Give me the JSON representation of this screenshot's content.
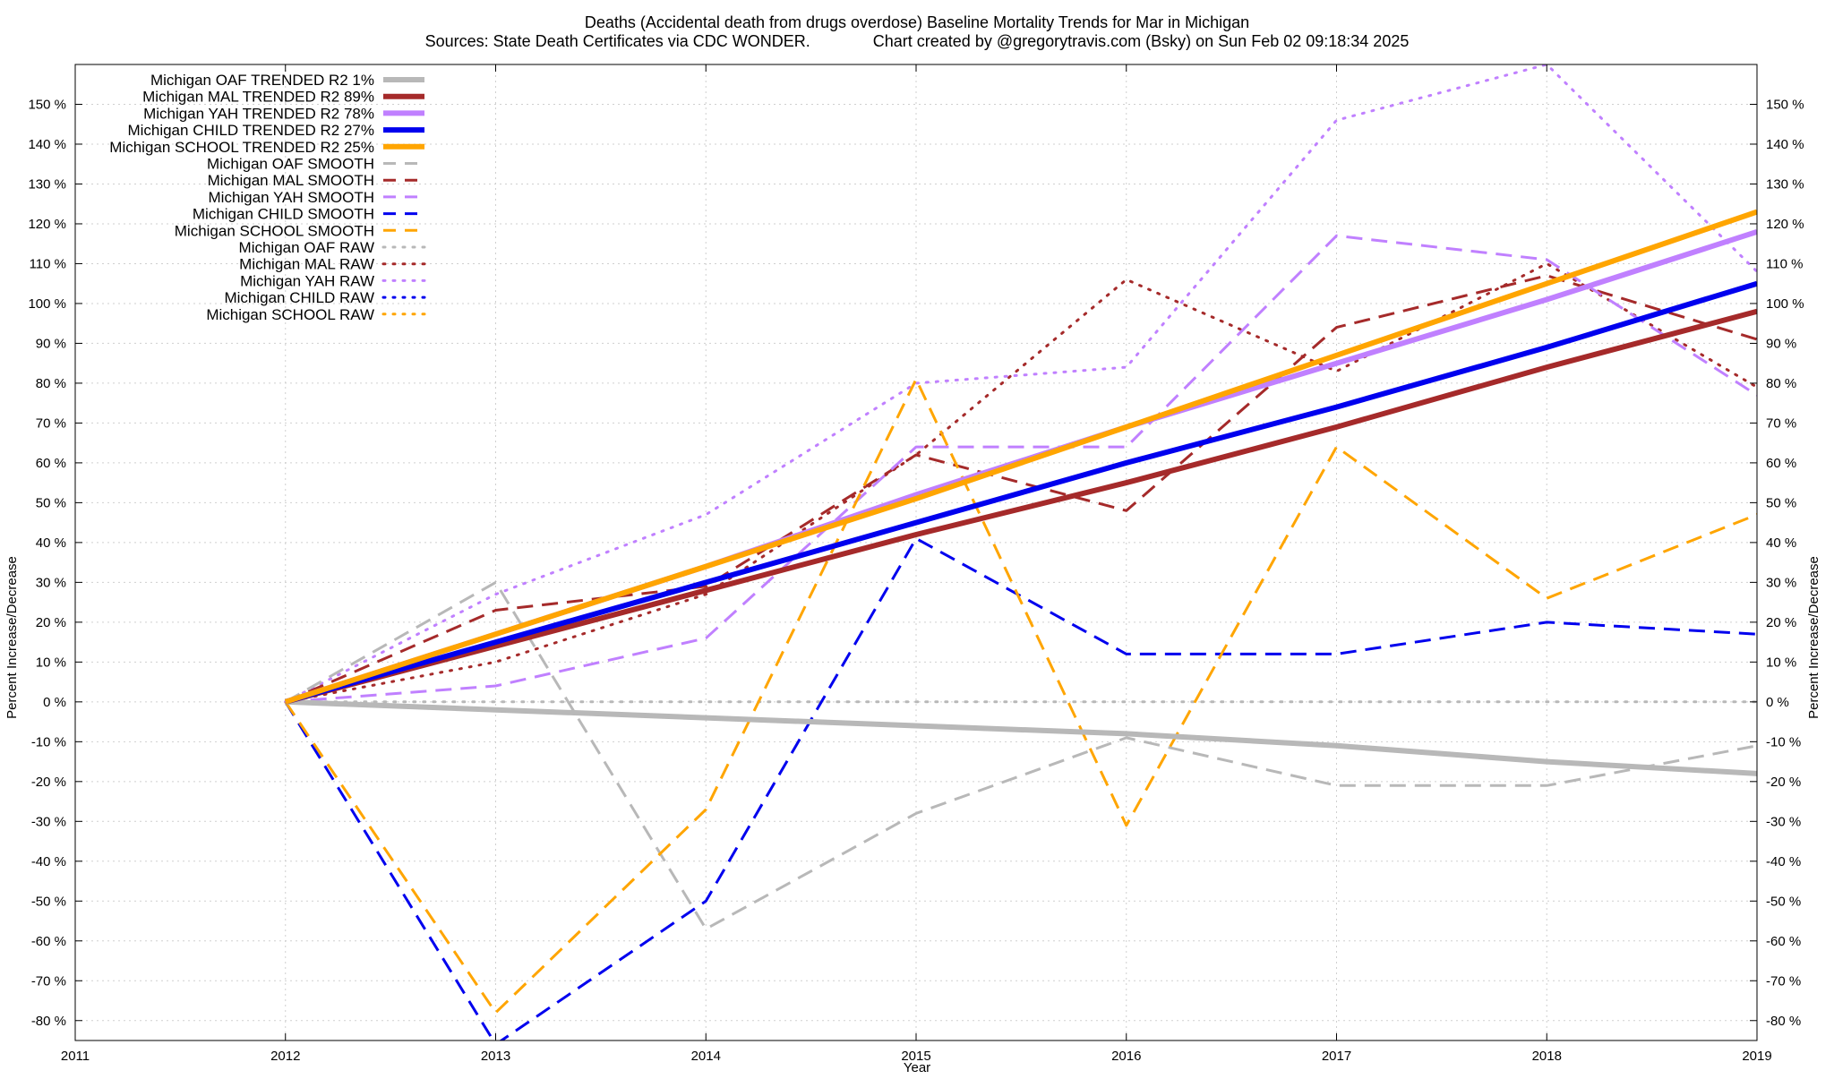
{
  "chart_data": {
    "type": "line",
    "title": "Deaths (Accidental death from drugs overdose)  Baseline Mortality Trends for Mar in Michigan",
    "subtitle": "Sources: State Death Certificates via CDC WONDER.              Chart created by @gregorytravis.com (Bsky) on Sun Feb 02 09:18:34 2025",
    "xlabel": "Year",
    "ylabel": "Percent Increase/Decrease",
    "xlim": [
      2011,
      2019
    ],
    "ylim": [
      -85,
      160
    ],
    "x_ticks": [
      "2011",
      "2012",
      "2013",
      "2014",
      "2015",
      "2016",
      "2017",
      "2018",
      "2019"
    ],
    "y_ticks": [
      "-80 %",
      "-70 %",
      "-60 %",
      "-50 %",
      "-40 %",
      "-30 %",
      "-20 %",
      "-10 %",
      "0 %",
      "10 %",
      "20 %",
      "30 %",
      "40 %",
      "50 %",
      "60 %",
      "70 %",
      "80 %",
      "90 %",
      "100 %",
      "110 %",
      "120 %",
      "130 %",
      "140 %",
      "150 %"
    ],
    "grid": true,
    "legend_position": "top-left",
    "series": [
      {
        "name": "Michigan OAF TRENDED R2   1%",
        "color": "#b8b8b8",
        "style": "solid",
        "width": 6,
        "x": [
          2012,
          2013,
          2014,
          2015,
          2016,
          2017,
          2018,
          2019
        ],
        "y": [
          0,
          -2,
          -4,
          -6,
          -8,
          -11,
          -15,
          -18
        ]
      },
      {
        "name": "Michigan MAL TRENDED R2  89%",
        "color": "#a52a2a",
        "style": "solid",
        "width": 6,
        "x": [
          2012,
          2013,
          2014,
          2015,
          2016,
          2017,
          2018,
          2019
        ],
        "y": [
          0,
          14,
          28,
          42,
          55,
          69,
          84,
          98
        ]
      },
      {
        "name": "Michigan YAH TRENDED R2  78%",
        "color": "#c080ff",
        "style": "solid",
        "width": 6,
        "x": [
          2012,
          2013,
          2014,
          2015,
          2016,
          2017,
          2018,
          2019
        ],
        "y": [
          0,
          17,
          34,
          52,
          69,
          85,
          101,
          118
        ]
      },
      {
        "name": "Michigan CHILD TRENDED R2  27%",
        "color": "#0000ee",
        "style": "solid",
        "width": 6,
        "x": [
          2012,
          2013,
          2014,
          2015,
          2016,
          2017,
          2018,
          2019
        ],
        "y": [
          0,
          15,
          30,
          45,
          60,
          74,
          89,
          105
        ]
      },
      {
        "name": "Michigan SCHOOL TRENDED R2  25%",
        "color": "#ffa500",
        "style": "solid",
        "width": 6,
        "x": [
          2012,
          2013,
          2014,
          2015,
          2016,
          2017,
          2018,
          2019
        ],
        "y": [
          0,
          17,
          34,
          51,
          69,
          87,
          105,
          123
        ]
      },
      {
        "name": "Michigan OAF SMOOTH",
        "color": "#b8b8b8",
        "style": "dashed",
        "width": 3,
        "x": [
          2012,
          2013,
          2014,
          2015,
          2016,
          2017,
          2018,
          2019
        ],
        "y": [
          0,
          30,
          -57,
          -28,
          -9,
          -21,
          -21,
          -11
        ]
      },
      {
        "name": "Michigan MAL SMOOTH",
        "color": "#a52a2a",
        "style": "dashed",
        "width": 3,
        "x": [
          2012,
          2013,
          2014,
          2015,
          2016,
          2017,
          2018,
          2019
        ],
        "y": [
          0,
          23,
          29,
          62,
          48,
          94,
          107,
          91
        ]
      },
      {
        "name": "Michigan YAH SMOOTH",
        "color": "#c080ff",
        "style": "dashed",
        "width": 3,
        "x": [
          2012,
          2013,
          2014,
          2015,
          2016,
          2017,
          2018,
          2019
        ],
        "y": [
          0,
          4,
          16,
          64,
          64,
          117,
          111,
          77
        ]
      },
      {
        "name": "Michigan CHILD SMOOTH",
        "color": "#0000ee",
        "style": "dashed",
        "width": 3,
        "x": [
          2012,
          2013,
          2014,
          2015,
          2016,
          2017,
          2018,
          2019
        ],
        "y": [
          0,
          -86,
          -50,
          41,
          12,
          12,
          20,
          17
        ]
      },
      {
        "name": "Michigan SCHOOL SMOOTH",
        "color": "#ffa500",
        "style": "dashed",
        "width": 3,
        "x": [
          2012,
          2013,
          2014,
          2015,
          2016,
          2017,
          2018,
          2019
        ],
        "y": [
          0,
          -78,
          -27,
          81,
          -31,
          64,
          26,
          47
        ]
      },
      {
        "name": "Michigan OAF RAW",
        "color": "#b8b8b8",
        "style": "dotted",
        "width": 3,
        "x": [
          2012,
          2013,
          2014,
          2015,
          2016,
          2017,
          2018,
          2019
        ],
        "y": [
          0,
          0,
          0,
          0,
          0,
          0,
          0,
          0
        ]
      },
      {
        "name": "Michigan MAL RAW",
        "color": "#a52a2a",
        "style": "dotted",
        "width": 3,
        "x": [
          2012,
          2013,
          2014,
          2015,
          2016,
          2017,
          2018,
          2019
        ],
        "y": [
          0,
          10,
          27,
          62,
          106,
          83,
          110,
          79
        ]
      },
      {
        "name": "Michigan YAH RAW",
        "color": "#c080ff",
        "style": "dotted",
        "width": 3,
        "x": [
          2012,
          2013,
          2014,
          2015,
          2016,
          2017,
          2018,
          2019
        ],
        "y": [
          0,
          27,
          47,
          80,
          84,
          146,
          160,
          108
        ]
      },
      {
        "name": "Michigan CHILD RAW",
        "color": "#0000ee",
        "style": "dotted",
        "width": 3,
        "x": [],
        "y": []
      },
      {
        "name": "Michigan SCHOOL RAW",
        "color": "#ffa500",
        "style": "dotted",
        "width": 3,
        "x": [],
        "y": []
      }
    ]
  }
}
